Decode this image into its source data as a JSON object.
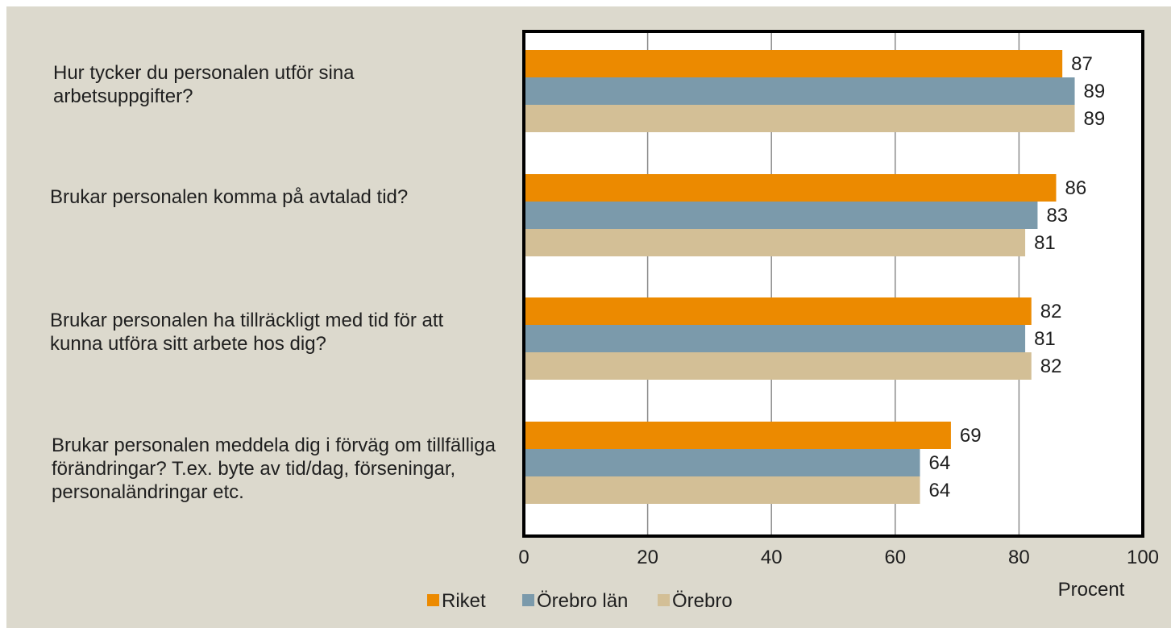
{
  "chart_data": {
    "type": "bar",
    "orientation": "horizontal",
    "categories": [
      "Hur tycker du personalen utför sina arbetsuppgifter?",
      "Brukar personalen komma på avtalad tid?",
      "Brukar personalen ha tillräckligt med tid för att kunna utföra sitt arbete hos dig?",
      "Brukar personalen meddela dig i förväg om tillfälliga förändringar? T.ex. byte av tid/dag, förseningar, personaländringar etc."
    ],
    "series": [
      {
        "name": "Riket",
        "color": "#ec8a00",
        "values": [
          87,
          86,
          82,
          69
        ]
      },
      {
        "name": "Örebro län",
        "color": "#7b9aab",
        "values": [
          89,
          83,
          81,
          64
        ]
      },
      {
        "name": "Örebro",
        "color": "#d3bf96",
        "values": [
          89,
          81,
          82,
          64
        ]
      }
    ],
    "xlabel": "Procent",
    "xlim": [
      0,
      100
    ],
    "xticks": [
      "0",
      "20",
      "40",
      "60",
      "80",
      "100"
    ],
    "grid": true,
    "legend_position": "bottom",
    "data_labels": true
  }
}
